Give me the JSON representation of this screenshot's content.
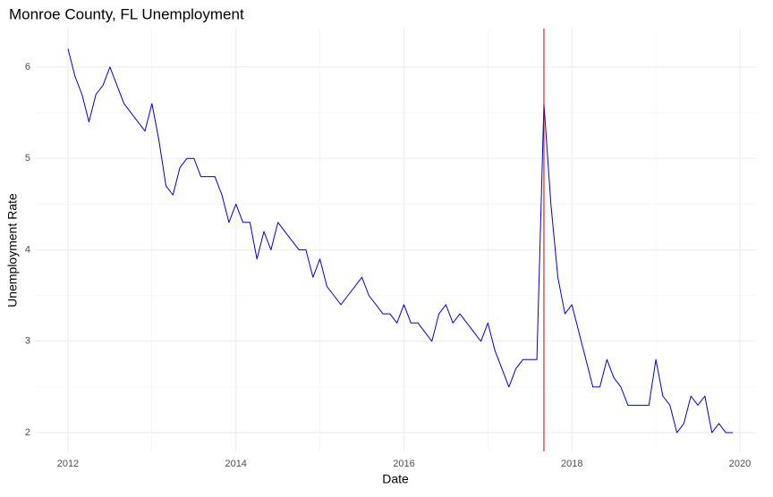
{
  "chart_data": {
    "type": "line",
    "title": "Monroe County, FL Unemployment",
    "x_label": "Date",
    "y_label": "Unemployment Rate",
    "x": [
      2012.0,
      2012.083,
      2012.167,
      2012.25,
      2012.333,
      2012.417,
      2012.5,
      2012.583,
      2012.667,
      2012.75,
      2012.833,
      2012.917,
      2013.0,
      2013.083,
      2013.167,
      2013.25,
      2013.333,
      2013.417,
      2013.5,
      2013.583,
      2013.667,
      2013.75,
      2013.833,
      2013.917,
      2014.0,
      2014.083,
      2014.167,
      2014.25,
      2014.333,
      2014.417,
      2014.5,
      2014.583,
      2014.667,
      2014.75,
      2014.833,
      2014.917,
      2015.0,
      2015.083,
      2015.167,
      2015.25,
      2015.333,
      2015.417,
      2015.5,
      2015.583,
      2015.667,
      2015.75,
      2015.833,
      2015.917,
      2016.0,
      2016.083,
      2016.167,
      2016.25,
      2016.333,
      2016.417,
      2016.5,
      2016.583,
      2016.667,
      2016.75,
      2016.833,
      2016.917,
      2017.0,
      2017.083,
      2017.167,
      2017.25,
      2017.333,
      2017.417,
      2017.5,
      2017.583,
      2017.667,
      2017.75,
      2017.833,
      2017.917,
      2018.0,
      2018.083,
      2018.167,
      2018.25,
      2018.333,
      2018.417,
      2018.5,
      2018.583,
      2018.667,
      2018.75,
      2018.833,
      2018.917,
      2019.0,
      2019.083,
      2019.167,
      2019.25,
      2019.333,
      2019.417,
      2019.5,
      2019.583,
      2019.667,
      2019.75,
      2019.833,
      2019.917
    ],
    "values": [
      6.2,
      5.9,
      5.7,
      5.4,
      5.7,
      5.8,
      6.0,
      5.8,
      5.6,
      5.5,
      5.4,
      5.3,
      5.6,
      5.2,
      4.7,
      4.6,
      4.9,
      5.0,
      5.0,
      4.8,
      4.8,
      4.8,
      4.6,
      4.3,
      4.5,
      4.3,
      4.3,
      3.9,
      4.2,
      4.0,
      4.3,
      4.2,
      4.1,
      4.0,
      4.0,
      3.7,
      3.9,
      3.6,
      3.5,
      3.4,
      3.5,
      3.6,
      3.7,
      3.5,
      3.4,
      3.3,
      3.3,
      3.2,
      3.4,
      3.2,
      3.2,
      3.1,
      3.0,
      3.3,
      3.4,
      3.2,
      3.3,
      3.2,
      3.1,
      3.0,
      3.2,
      2.9,
      2.7,
      2.5,
      2.7,
      2.8,
      2.8,
      2.8,
      5.6,
      4.5,
      3.7,
      3.3,
      3.4,
      3.1,
      2.8,
      2.5,
      2.5,
      2.8,
      2.6,
      2.5,
      2.3,
      2.3,
      2.3,
      2.3,
      2.8,
      2.4,
      2.3,
      2.0,
      2.1,
      2.4,
      2.3,
      2.4,
      2.0,
      2.1,
      2.0,
      2.0
    ],
    "color": "#0000cc",
    "vline": 2017.667,
    "vline_color": "#cc0000",
    "xlim": [
      2011.617,
      2020.192
    ],
    "ylim": [
      1.795,
      6.42
    ],
    "xticks": [
      2012,
      2014,
      2016,
      2018,
      2020
    ],
    "yticks": [
      2,
      3,
      4,
      5,
      6
    ],
    "xminor": [
      2013,
      2015,
      2017,
      2019
    ],
    "yminor": [
      2.5,
      3.5,
      4.5,
      5.5
    ],
    "grid": true
  }
}
